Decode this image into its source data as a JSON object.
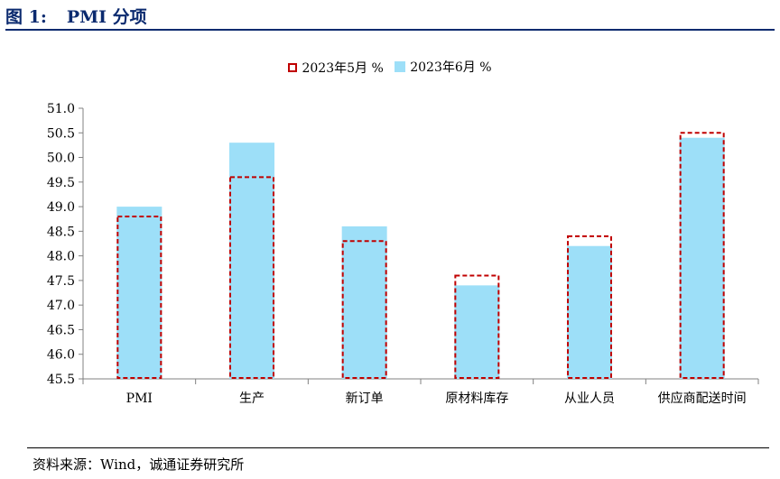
{
  "figure": {
    "number": "图 1:",
    "title": "PMI 分项"
  },
  "source": "资料来源：Wind，诚通证券研究所",
  "colors": {
    "may": "#c00000",
    "jun": "#9ddff8",
    "title": "#0b2a6f"
  },
  "chart_data": {
    "type": "bar",
    "categories": [
      "PMI",
      "生产",
      "新订单",
      "原材料库存",
      "从业人员",
      "供应商配送时间"
    ],
    "series": [
      {
        "name": "2023年5月 %",
        "values": [
          48.8,
          49.6,
          48.3,
          47.6,
          48.4,
          50.5
        ]
      },
      {
        "name": "2023年6月 %",
        "values": [
          49.0,
          50.3,
          48.6,
          47.4,
          48.2,
          50.4
        ]
      }
    ],
    "ylim": [
      45.5,
      51.0
    ],
    "yticks": [
      "45.5",
      "46.0",
      "46.5",
      "47.0",
      "47.5",
      "48.0",
      "48.5",
      "49.0",
      "49.5",
      "50.0",
      "50.5",
      "51.0"
    ],
    "legend": "top",
    "grid": false
  }
}
